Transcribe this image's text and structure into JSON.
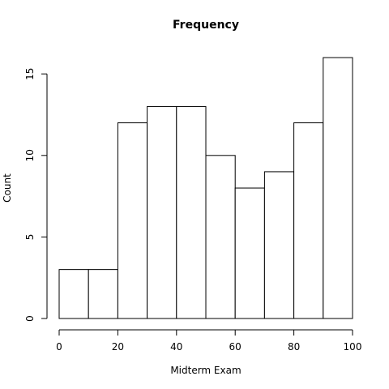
{
  "chart_data": {
    "type": "bar",
    "subtype": "histogram",
    "title": "Frequency",
    "xlabel": "Midterm Exam",
    "ylabel": "Count",
    "bins": [
      {
        "start": 0,
        "end": 10,
        "count": 3
      },
      {
        "start": 10,
        "end": 20,
        "count": 3
      },
      {
        "start": 20,
        "end": 30,
        "count": 12
      },
      {
        "start": 30,
        "end": 40,
        "count": 13
      },
      {
        "start": 40,
        "end": 50,
        "count": 13
      },
      {
        "start": 50,
        "end": 60,
        "count": 10
      },
      {
        "start": 60,
        "end": 70,
        "count": 8
      },
      {
        "start": 70,
        "end": 80,
        "count": 9
      },
      {
        "start": 80,
        "end": 90,
        "count": 12
      },
      {
        "start": 90,
        "end": 100,
        "count": 16
      }
    ],
    "xlim": [
      0,
      100
    ],
    "ylim": [
      0,
      16
    ],
    "xticks": [
      0,
      20,
      40,
      60,
      80,
      100
    ],
    "yticks": [
      0,
      5,
      10,
      15
    ],
    "grid": false,
    "bar_fill": "#ffffff",
    "bar_stroke": "#000000"
  }
}
